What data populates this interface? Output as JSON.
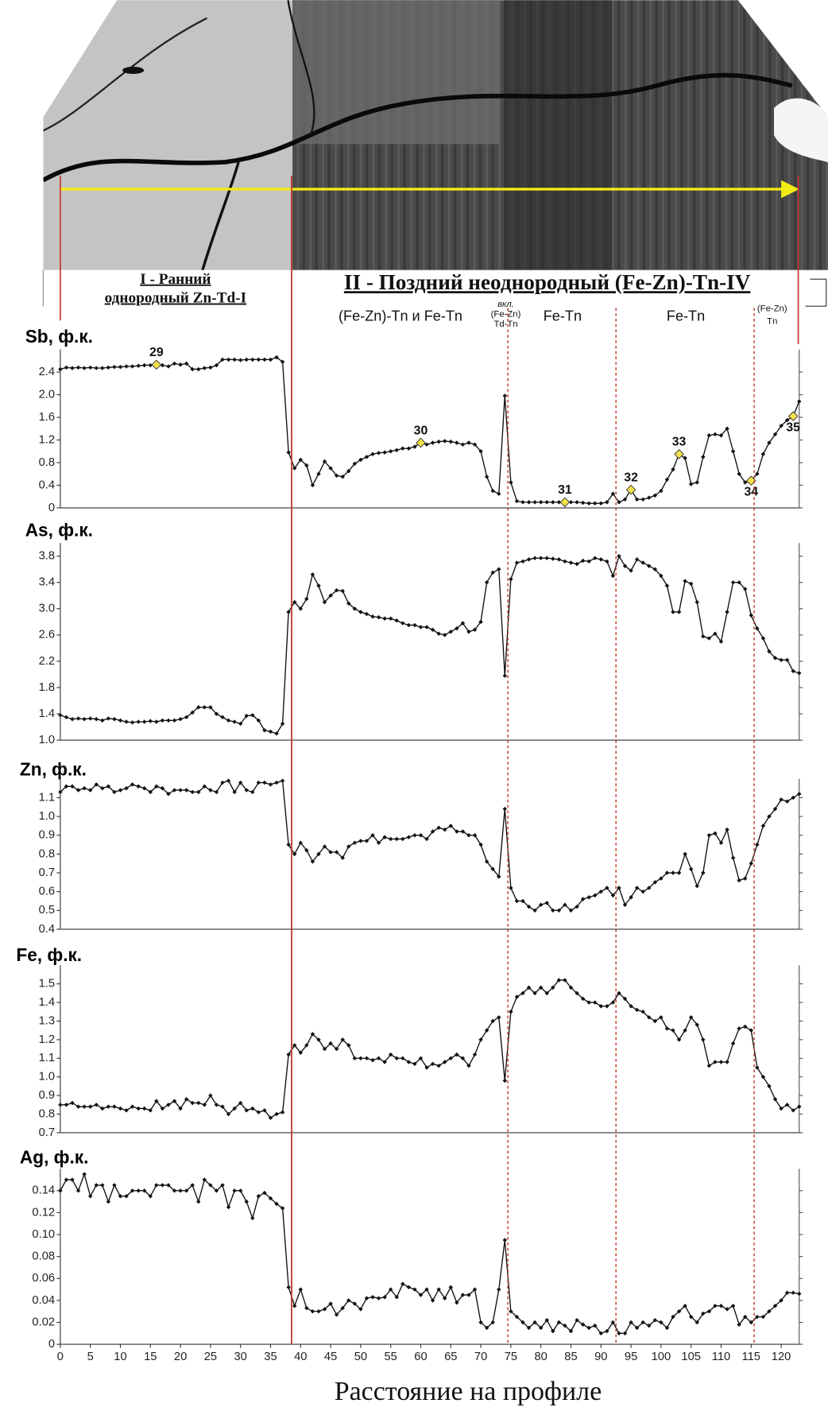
{
  "photo": {
    "stage1": [
      "I - Ранний",
      "однородный Zn-Td-I"
    ],
    "stage2": "II - Поздний неоднородный (Fe-Zn)-Tn-IV",
    "zones": [
      "(Fe-Zn)-Tn и Fe-Tn",
      "вкл.",
      "(Fe-Zn)",
      "Td-Tn",
      "Fe-Tn",
      "Fe-Tn",
      "(Fe-Zn)",
      "Tn"
    ]
  },
  "chart_data": {
    "type": "line",
    "xlabel": "Расстояние на профиле",
    "xlim": [
      0,
      123
    ],
    "xticks": [
      0,
      5,
      10,
      15,
      20,
      25,
      30,
      35,
      40,
      45,
      50,
      55,
      60,
      65,
      70,
      75,
      80,
      85,
      90,
      95,
      100,
      105,
      110,
      115,
      120
    ],
    "color": "#111111",
    "boundary_color": "#c0392b",
    "boundaries": [
      {
        "x": 38.5,
        "style": "solid"
      },
      {
        "x": 74.5,
        "style": "dotted"
      },
      {
        "x": 92.5,
        "style": "dotted"
      },
      {
        "x": 115.5,
        "style": "dotted"
      }
    ],
    "x": [
      0,
      1,
      2,
      3,
      4,
      5,
      6,
      7,
      8,
      9,
      10,
      11,
      12,
      13,
      14,
      15,
      16,
      17,
      18,
      19,
      20,
      21,
      22,
      23,
      24,
      25,
      26,
      27,
      28,
      29,
      30,
      31,
      32,
      33,
      34,
      35,
      36,
      37,
      38,
      39,
      40,
      41,
      42,
      43,
      44,
      45,
      46,
      47,
      48,
      49,
      50,
      51,
      52,
      53,
      54,
      55,
      56,
      57,
      58,
      59,
      60,
      61,
      62,
      63,
      64,
      65,
      66,
      67,
      68,
      69,
      70,
      71,
      72,
      73,
      74,
      75,
      76,
      77,
      78,
      79,
      80,
      81,
      82,
      83,
      84,
      85,
      86,
      87,
      88,
      89,
      90,
      91,
      92,
      93,
      94,
      95,
      96,
      97,
      98,
      99,
      100,
      101,
      102,
      103,
      104,
      105,
      106,
      107,
      108,
      109,
      110,
      111,
      112,
      113,
      114,
      115,
      116,
      117,
      118,
      119,
      120,
      121,
      122,
      123
    ],
    "panels": [
      {
        "title": "Sb, ф.к.",
        "ylim": [
          0,
          2.8
        ],
        "yticks": [
          0,
          0.4,
          0.8,
          1.2,
          1.6,
          {
            "value": 2,
            "label": "2.0"
          },
          2.4
        ],
        "values": [
          2.45,
          2.48,
          2.47,
          2.48,
          2.47,
          2.48,
          2.47,
          2.47,
          2.48,
          2.49,
          2.49,
          2.5,
          2.5,
          2.51,
          2.52,
          2.52,
          2.53,
          2.52,
          2.5,
          2.55,
          2.53,
          2.55,
          2.45,
          2.45,
          2.47,
          2.48,
          2.52,
          2.62,
          2.62,
          2.62,
          2.61,
          2.62,
          2.62,
          2.62,
          2.62,
          2.62,
          2.66,
          2.58,
          0.98,
          0.7,
          0.85,
          0.75,
          0.4,
          0.6,
          0.82,
          0.7,
          0.57,
          0.55,
          0.65,
          0.78,
          0.85,
          0.9,
          0.95,
          0.97,
          0.98,
          1.0,
          1.02,
          1.05,
          1.05,
          1.08,
          1.15,
          1.12,
          1.15,
          1.17,
          1.18,
          1.17,
          1.15,
          1.12,
          1.15,
          1.12,
          1.0,
          0.55,
          0.3,
          0.25,
          1.98,
          0.45,
          0.12,
          0.1,
          0.1,
          0.1,
          0.1,
          0.1,
          0.1,
          0.1,
          0.1,
          0.1,
          0.1,
          0.09,
          0.08,
          0.08,
          0.08,
          0.1,
          0.25,
          0.1,
          0.15,
          0.32,
          0.15,
          0.15,
          0.18,
          0.22,
          0.3,
          0.5,
          0.68,
          0.95,
          0.88,
          0.42,
          0.45,
          0.9,
          1.28,
          1.3,
          1.28,
          1.4,
          1.0,
          0.6,
          0.45,
          0.48,
          0.6,
          0.95,
          1.15,
          1.3,
          1.45,
          1.55,
          1.62,
          1.88
        ],
        "annotation_color": "#f2e14a",
        "annotations": [
          {
            "x": 16,
            "label": "29"
          },
          {
            "x": 60,
            "label": "30"
          },
          {
            "x": 84,
            "label": "31"
          },
          {
            "x": 95,
            "label": "32"
          },
          {
            "x": 103,
            "label": "33"
          },
          {
            "x": 115,
            "label": "34"
          },
          {
            "x": 122,
            "label": "35"
          }
        ]
      },
      {
        "title": "As, ф.к.",
        "ylim": [
          1,
          4
        ],
        "yticks": [
          {
            "value": 1,
            "label": "1.0"
          },
          1.4,
          1.8,
          2.2,
          2.6,
          {
            "value": 3,
            "label": "3.0"
          },
          3.4,
          3.8
        ],
        "values": [
          1.38,
          1.35,
          1.32,
          1.33,
          1.32,
          1.33,
          1.32,
          1.3,
          1.33,
          1.32,
          1.3,
          1.28,
          1.27,
          1.28,
          1.28,
          1.29,
          1.28,
          1.3,
          1.3,
          1.3,
          1.32,
          1.35,
          1.42,
          1.5,
          1.5,
          1.5,
          1.4,
          1.35,
          1.3,
          1.28,
          1.25,
          1.37,
          1.38,
          1.3,
          1.15,
          1.13,
          1.1,
          1.25,
          2.95,
          3.1,
          3.0,
          3.15,
          3.52,
          3.35,
          3.1,
          3.2,
          3.28,
          3.27,
          3.08,
          3.0,
          2.95,
          2.92,
          2.88,
          2.87,
          2.85,
          2.85,
          2.82,
          2.78,
          2.75,
          2.75,
          2.72,
          2.72,
          2.68,
          2.62,
          2.6,
          2.65,
          2.7,
          2.78,
          2.65,
          2.68,
          2.8,
          3.4,
          3.55,
          3.6,
          1.98,
          3.45,
          3.7,
          3.72,
          3.75,
          3.77,
          3.77,
          3.77,
          3.76,
          3.75,
          3.72,
          3.7,
          3.68,
          3.73,
          3.72,
          3.77,
          3.75,
          3.72,
          3.5,
          3.8,
          3.65,
          3.58,
          3.75,
          3.7,
          3.65,
          3.6,
          3.5,
          3.35,
          2.95,
          2.95,
          3.42,
          3.38,
          3.1,
          2.58,
          2.55,
          2.62,
          2.5,
          2.95,
          3.4,
          3.4,
          3.3,
          2.9,
          2.7,
          2.55,
          2.35,
          2.25,
          2.22,
          2.22,
          2.05,
          2.02
        ]
      },
      {
        "title": "Zn, ф.к.",
        "ylim": [
          0.4,
          1.2
        ],
        "yticks": [
          0.4,
          0.5,
          0.6,
          0.7,
          0.8,
          0.9,
          {
            "value": 1,
            "label": "1.0"
          },
          1.1
        ],
        "values": [
          1.13,
          1.16,
          1.16,
          1.14,
          1.15,
          1.14,
          1.17,
          1.15,
          1.16,
          1.13,
          1.14,
          1.15,
          1.17,
          1.16,
          1.15,
          1.13,
          1.16,
          1.15,
          1.12,
          1.14,
          1.14,
          1.14,
          1.13,
          1.13,
          1.16,
          1.14,
          1.13,
          1.18,
          1.19,
          1.13,
          1.18,
          1.14,
          1.13,
          1.18,
          1.18,
          1.17,
          1.18,
          1.19,
          0.85,
          0.8,
          0.86,
          0.82,
          0.76,
          0.8,
          0.84,
          0.81,
          0.81,
          0.78,
          0.84,
          0.86,
          0.87,
          0.87,
          0.9,
          0.86,
          0.89,
          0.88,
          0.88,
          0.88,
          0.89,
          0.9,
          0.9,
          0.88,
          0.92,
          0.94,
          0.93,
          0.95,
          0.92,
          0.92,
          0.9,
          0.9,
          0.85,
          0.76,
          0.72,
          0.68,
          1.04,
          0.62,
          0.55,
          0.55,
          0.52,
          0.5,
          0.53,
          0.54,
          0.5,
          0.5,
          0.53,
          0.5,
          0.52,
          0.56,
          0.57,
          0.58,
          0.6,
          0.62,
          0.58,
          0.62,
          0.53,
          0.57,
          0.62,
          0.6,
          0.62,
          0.65,
          0.67,
          0.7,
          0.7,
          0.7,
          0.8,
          0.72,
          0.63,
          0.7,
          0.9,
          0.91,
          0.86,
          0.93,
          0.78,
          0.66,
          0.67,
          0.75,
          0.85,
          0.95,
          1.0,
          1.04,
          1.09,
          1.08,
          1.1,
          1.12
        ]
      },
      {
        "title": "Fe, ф.к.",
        "ylim": [
          0.7,
          1.6
        ],
        "yticks": [
          0.7,
          0.8,
          0.9,
          {
            "value": 1,
            "label": "1.0"
          },
          1.1,
          1.2,
          1.3,
          1.4,
          1.5
        ],
        "values": [
          0.85,
          0.85,
          0.86,
          0.84,
          0.84,
          0.84,
          0.85,
          0.83,
          0.84,
          0.84,
          0.83,
          0.82,
          0.84,
          0.83,
          0.83,
          0.82,
          0.87,
          0.83,
          0.85,
          0.87,
          0.83,
          0.88,
          0.86,
          0.86,
          0.85,
          0.9,
          0.85,
          0.84,
          0.8,
          0.83,
          0.86,
          0.82,
          0.83,
          0.81,
          0.82,
          0.78,
          0.8,
          0.81,
          1.12,
          1.17,
          1.13,
          1.17,
          1.23,
          1.2,
          1.15,
          1.18,
          1.15,
          1.2,
          1.17,
          1.1,
          1.1,
          1.1,
          1.09,
          1.1,
          1.08,
          1.12,
          1.1,
          1.1,
          1.08,
          1.07,
          1.1,
          1.05,
          1.07,
          1.06,
          1.08,
          1.1,
          1.12,
          1.1,
          1.06,
          1.12,
          1.2,
          1.25,
          1.3,
          1.32,
          0.98,
          1.35,
          1.43,
          1.45,
          1.48,
          1.45,
          1.48,
          1.45,
          1.48,
          1.52,
          1.52,
          1.48,
          1.45,
          1.42,
          1.4,
          1.4,
          1.38,
          1.38,
          1.4,
          1.45,
          1.42,
          1.38,
          1.36,
          1.35,
          1.32,
          1.3,
          1.32,
          1.26,
          1.25,
          1.2,
          1.25,
          1.32,
          1.28,
          1.2,
          1.06,
          1.08,
          1.08,
          1.08,
          1.18,
          1.26,
          1.27,
          1.25,
          1.05,
          1.0,
          0.95,
          0.88,
          0.83,
          0.85,
          0.82,
          0.84
        ]
      },
      {
        "title": "Ag, ф.к.",
        "ylim": [
          0,
          0.16
        ],
        "yticks": [
          0,
          0.02,
          0.04,
          0.06,
          0.08,
          {
            "value": 0.1,
            "label": "0.10"
          },
          0.12,
          0.14
        ],
        "values": [
          0.14,
          0.15,
          0.15,
          0.14,
          0.155,
          0.135,
          0.145,
          0.145,
          0.13,
          0.145,
          0.135,
          0.135,
          0.14,
          0.14,
          0.14,
          0.135,
          0.145,
          0.145,
          0.145,
          0.14,
          0.14,
          0.14,
          0.145,
          0.13,
          0.15,
          0.145,
          0.14,
          0.145,
          0.125,
          0.14,
          0.14,
          0.13,
          0.115,
          0.135,
          0.138,
          0.133,
          0.128,
          0.124,
          0.052,
          0.035,
          0.05,
          0.033,
          0.03,
          0.03,
          0.032,
          0.037,
          0.027,
          0.033,
          0.04,
          0.037,
          0.032,
          0.042,
          0.043,
          0.042,
          0.043,
          0.05,
          0.043,
          0.055,
          0.052,
          0.05,
          0.045,
          0.05,
          0.04,
          0.05,
          0.042,
          0.052,
          0.038,
          0.045,
          0.045,
          0.05,
          0.02,
          0.015,
          0.02,
          0.05,
          0.095,
          0.03,
          0.025,
          0.02,
          0.015,
          0.02,
          0.015,
          0.022,
          0.012,
          0.02,
          0.017,
          0.012,
          0.022,
          0.018,
          0.015,
          0.017,
          0.01,
          0.012,
          0.02,
          0.01,
          0.01,
          0.02,
          0.015,
          0.02,
          0.017,
          0.022,
          0.02,
          0.015,
          0.025,
          0.03,
          0.035,
          0.025,
          0.02,
          0.028,
          0.03,
          0.035,
          0.035,
          0.032,
          0.035,
          0.018,
          0.025,
          0.02,
          0.025,
          0.025,
          0.03,
          0.035,
          0.04,
          0.047,
          0.047,
          0.046
        ]
      }
    ]
  }
}
